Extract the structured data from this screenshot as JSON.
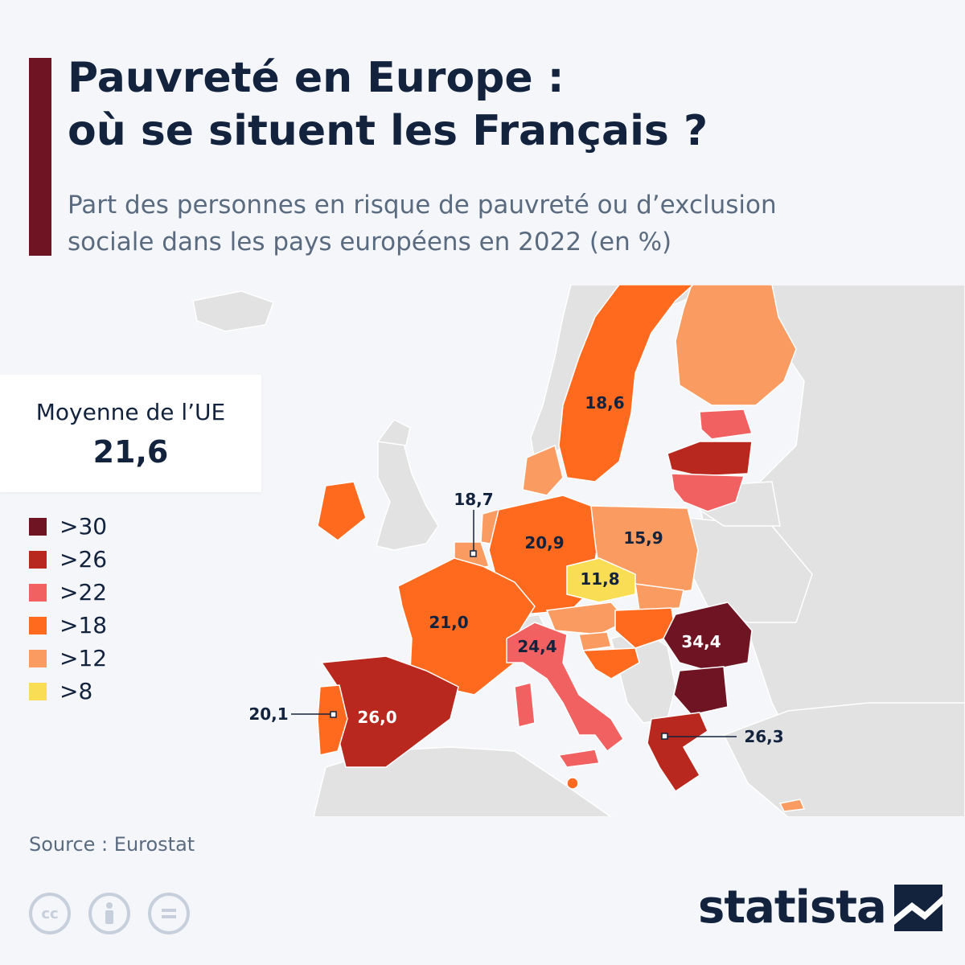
{
  "header": {
    "title_line1": "Pauvreté en Europe :",
    "title_line2": "où se situent les Français ?",
    "subtitle_line1": "Part des personnes en risque de pauvreté ou d’exclusion",
    "subtitle_line2": "sociale dans les pays européens en 2022 (en %)"
  },
  "average": {
    "label": "Moyenne de l’UE",
    "value": "21,6"
  },
  "legend": [
    {
      "label": ">30",
      "color": "#6e1423"
    },
    {
      "label": ">26",
      "color": "#b8281e"
    },
    {
      "label": ">22",
      "color": "#f26161"
    },
    {
      "label": ">18",
      "color": "#ff6a1f"
    },
    {
      "label": ">12",
      "color": "#fa9b62"
    },
    {
      "label": ">8",
      "color": "#f9dd55"
    }
  ],
  "map_values": {
    "sweden": "18,6",
    "benelux": "18,7",
    "germany": "20,9",
    "poland": "15,9",
    "czechia": "11,8",
    "france": "21,0",
    "italy": "24,4",
    "romania": "34,4",
    "portugal": "20,1",
    "spain": "26,0",
    "greece": "26,3"
  },
  "colors": {
    "background": "#f4f6f9",
    "non_eu_land": "#e2e2e2",
    "border": "#ffffff",
    "title": "#13233d",
    "accent": "#6e1423"
  },
  "footer": {
    "source": "Source : Eurostat",
    "brand": "statista",
    "license_icons": [
      "cc-icon",
      "attribution-icon",
      "no-derivatives-icon"
    ]
  }
}
